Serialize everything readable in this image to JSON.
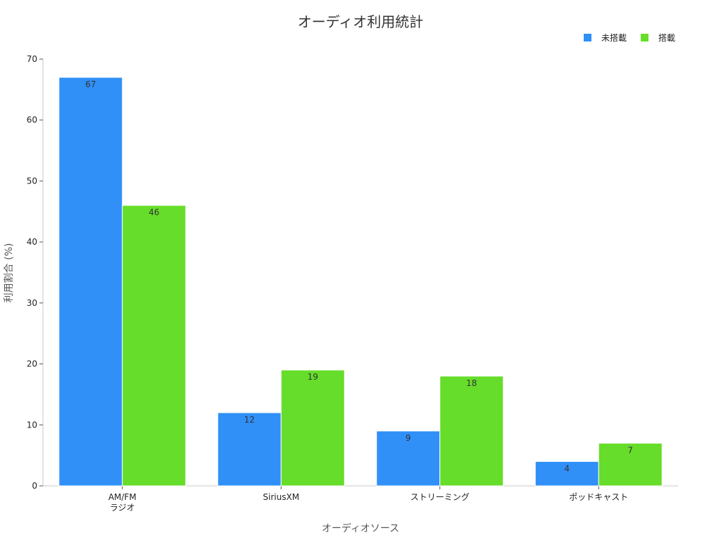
{
  "chart_data": {
    "type": "bar",
    "title": "オーディオ利用統計",
    "xlabel": "オーディオソース",
    "ylabel": "利用割合 (%)",
    "categories": [
      [
        "AM/FM",
        "ラジオ"
      ],
      [
        "SiriusXM"
      ],
      [
        "ストリーミング"
      ],
      [
        "ポッドキャスト"
      ]
    ],
    "series": [
      {
        "name": "未搭載",
        "color": "#3090f8",
        "values": [
          67,
          12,
          9,
          4
        ]
      },
      {
        "name": "搭載",
        "color": "#66dd2a",
        "values": [
          46,
          19,
          18,
          7
        ]
      }
    ],
    "ylim": [
      0,
      70
    ],
    "yticks": [
      0,
      10,
      20,
      30,
      40,
      50,
      60,
      70
    ],
    "grid": false,
    "legend_position": "top-right",
    "data_labels": true
  }
}
